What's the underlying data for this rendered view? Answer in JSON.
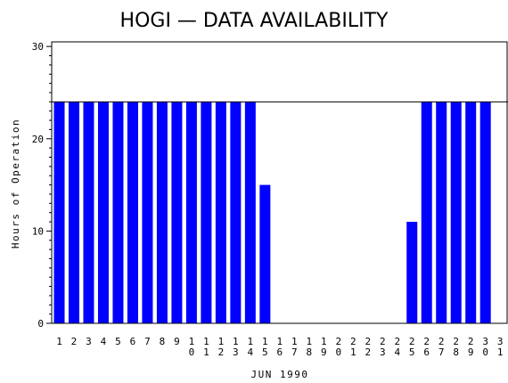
{
  "chart_data": {
    "type": "bar",
    "title": "HOGI — DATA AVAILABILITY",
    "xlabel": "JUN 1990",
    "ylabel": "Hours of Operation",
    "categories": [
      "1",
      "2",
      "3",
      "4",
      "5",
      "6",
      "7",
      "8",
      "9",
      "10",
      "11",
      "12",
      "13",
      "14",
      "15",
      "16",
      "17",
      "18",
      "19",
      "20",
      "21",
      "22",
      "23",
      "24",
      "25",
      "26",
      "27",
      "28",
      "29",
      "30",
      "31"
    ],
    "values": [
      24,
      24,
      24,
      24,
      24,
      24,
      24,
      24,
      24,
      24,
      24,
      24,
      24,
      24,
      15,
      0,
      0,
      0,
      0,
      0,
      0,
      0,
      0,
      0,
      11,
      24,
      24,
      24,
      24,
      24,
      0
    ],
    "ylim": [
      0,
      30.5
    ],
    "yticks": [
      0,
      10,
      20,
      30
    ],
    "reference_line": 24,
    "bar_color": "#0000ff",
    "grid": false
  }
}
